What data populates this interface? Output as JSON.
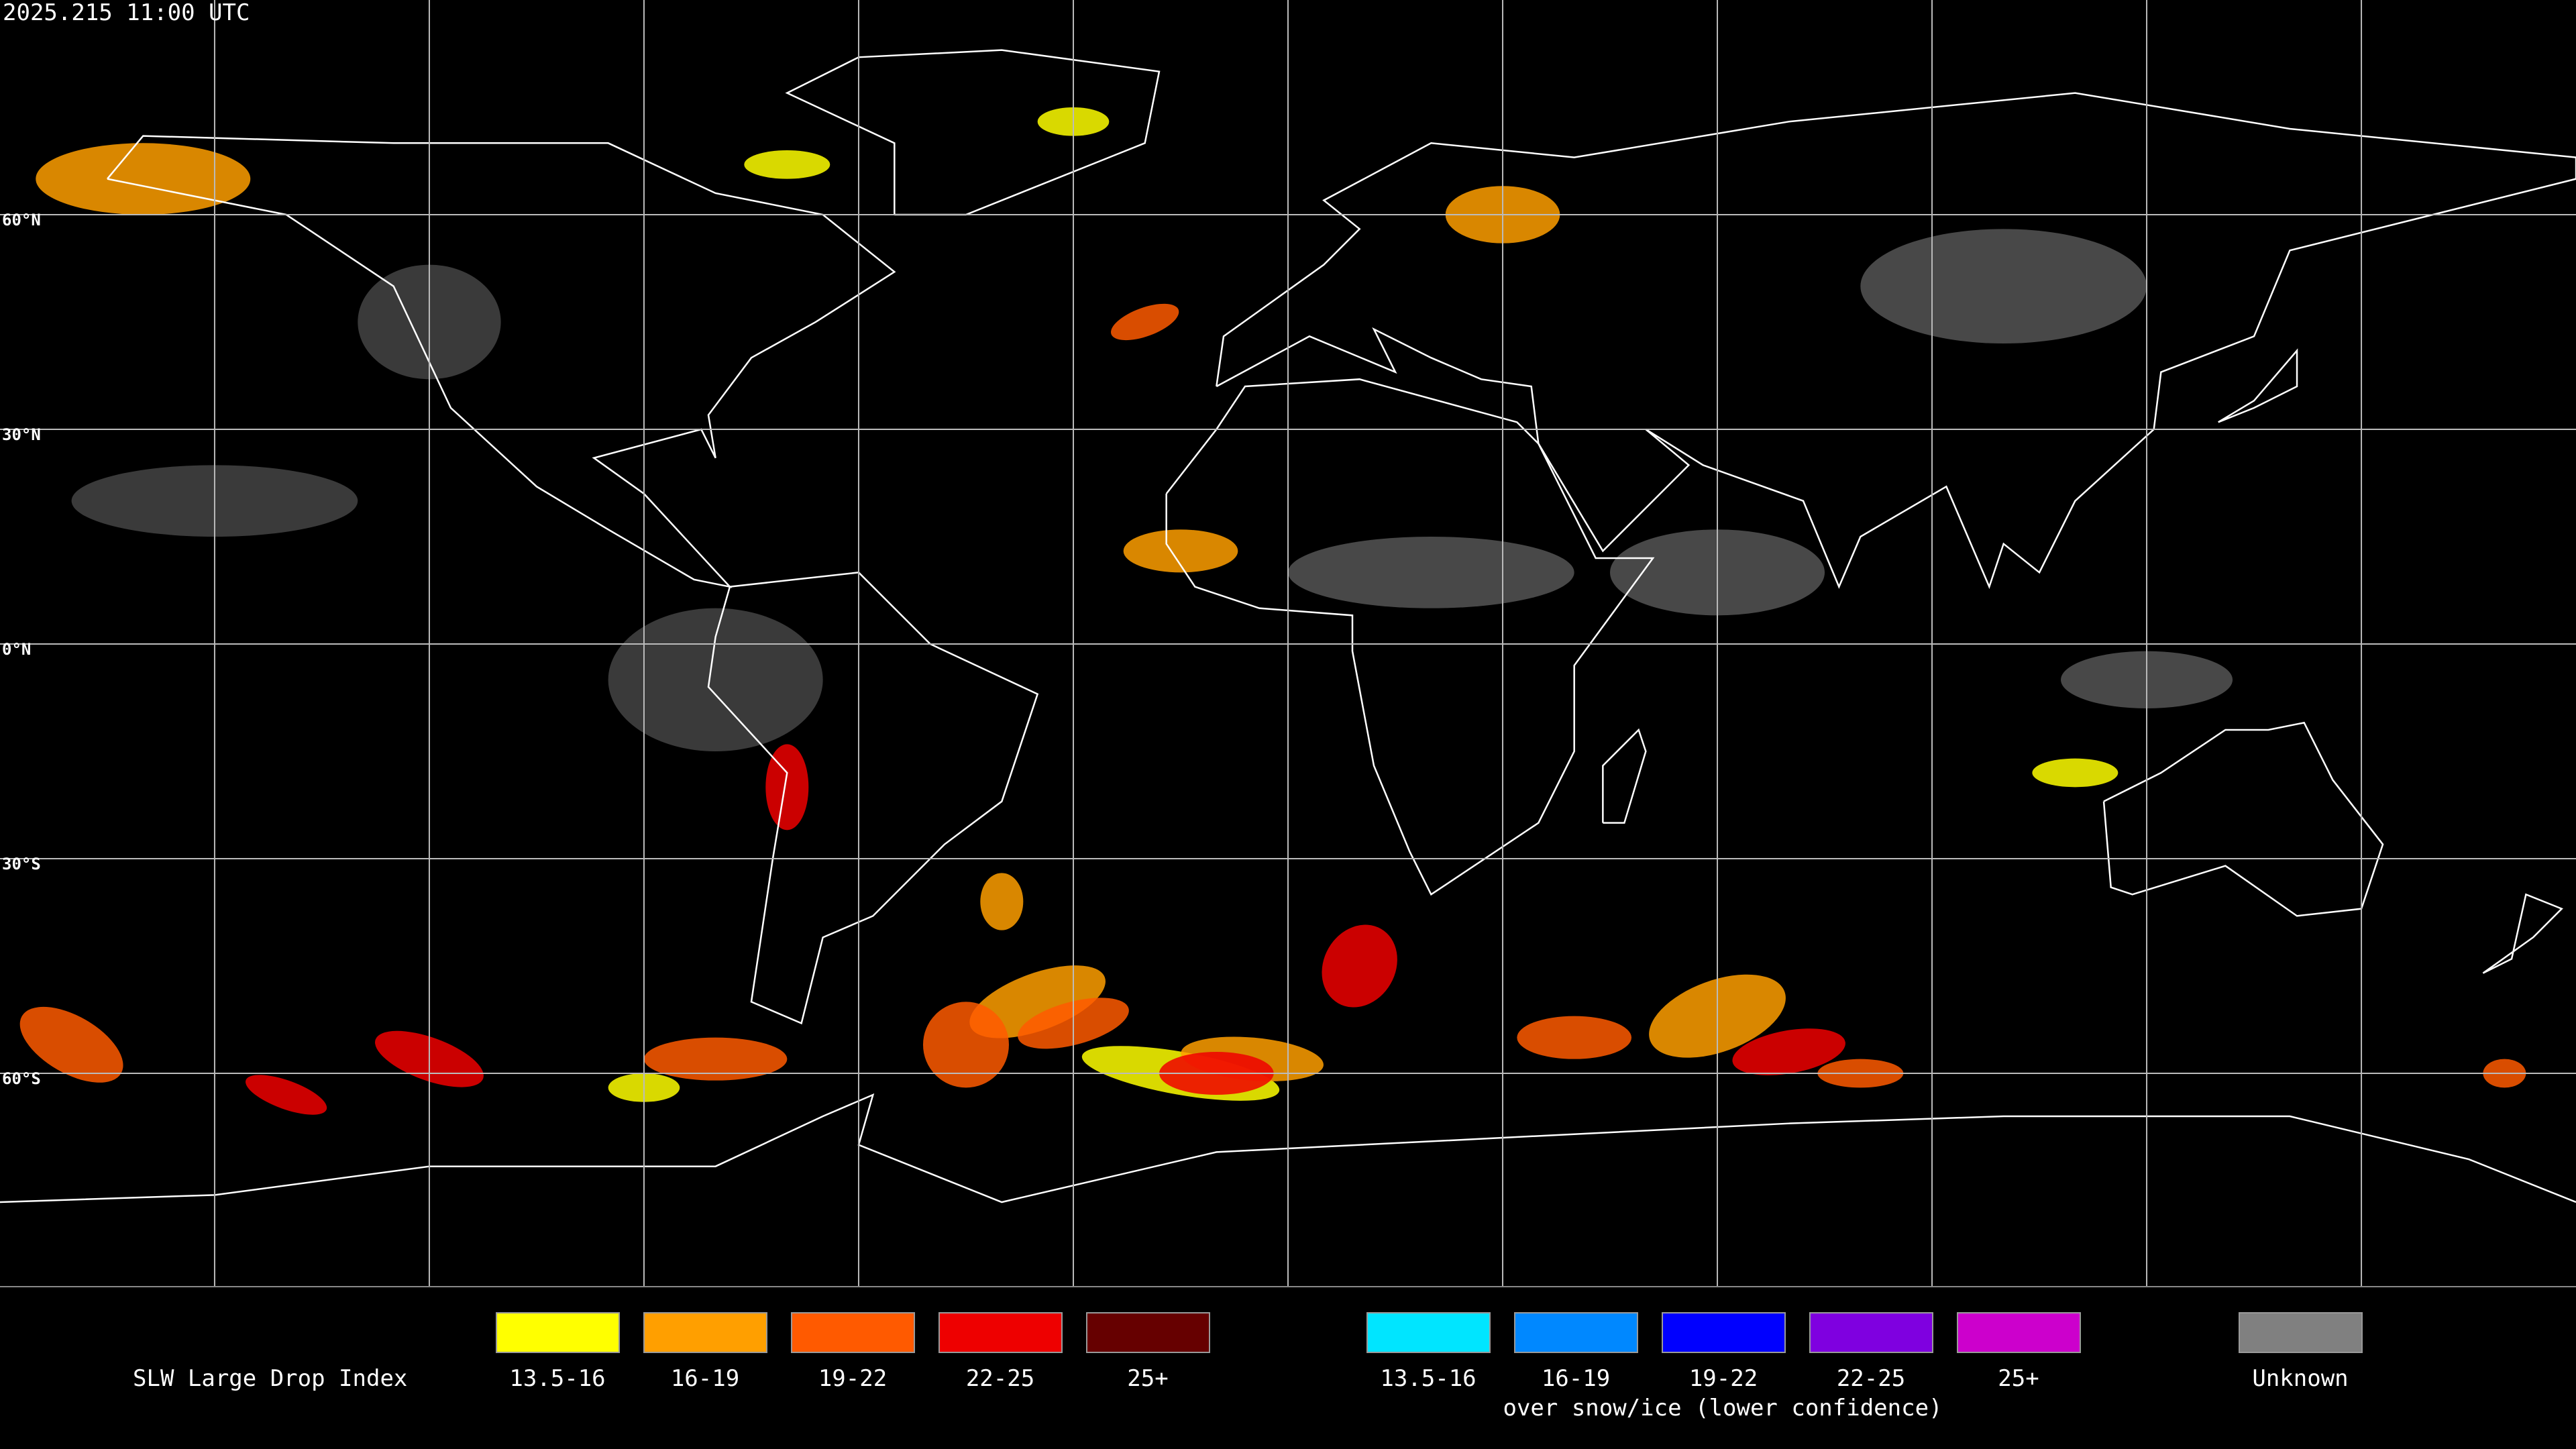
{
  "header": {
    "timestamp": "2025.215 11:00 UTC"
  },
  "map": {
    "latitude_labels": [
      "60°N",
      "30°N",
      "0°N",
      "30°S",
      "60°S"
    ]
  },
  "legend": {
    "title": "SLW Large Drop Index",
    "items": [
      {
        "label": "13.5-16",
        "color": "#ffff00"
      },
      {
        "label": "16-19",
        "color": "#ff9f00"
      },
      {
        "label": "19-22",
        "color": "#ff5a00"
      },
      {
        "label": "22-25",
        "color": "#ee0000"
      },
      {
        "label": "25+",
        "color": "#660000"
      }
    ],
    "snow_items": [
      {
        "label": "13.5-16",
        "color": "#00e5ff"
      },
      {
        "label": "16-19",
        "color": "#0088ff"
      },
      {
        "label": "19-22",
        "color": "#0000ff"
      },
      {
        "label": "22-25",
        "color": "#7f00e0"
      },
      {
        "label": "25+",
        "color": "#cc00cc"
      }
    ],
    "snow_caption": "over snow/ice (lower confidence)",
    "unknown": {
      "label": "Unknown",
      "color": "#808080"
    }
  }
}
